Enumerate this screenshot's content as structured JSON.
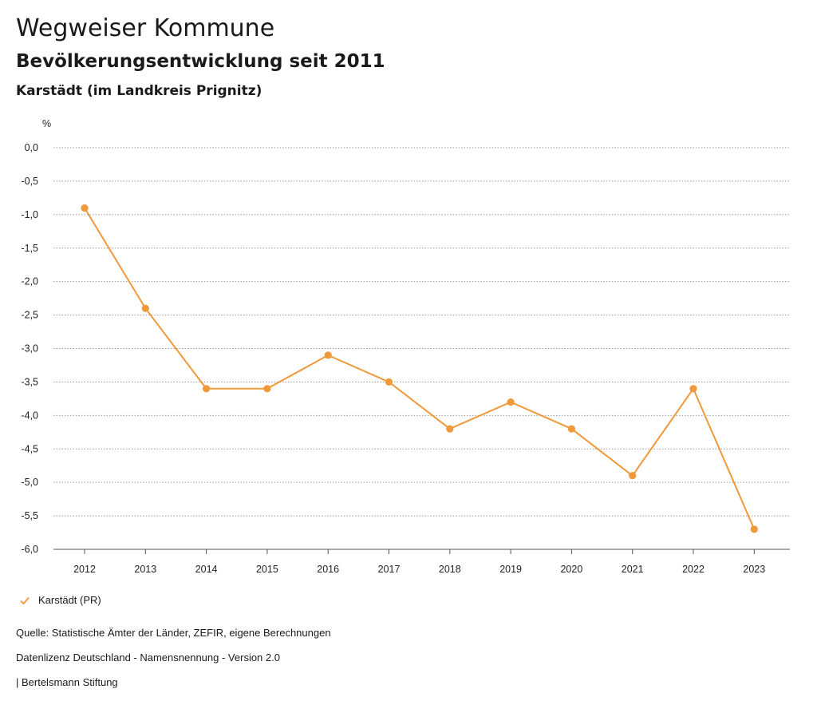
{
  "header": {
    "title": "Wegweiser Kommune",
    "subtitle": "Bevölkerungsentwicklung seit 2011",
    "region": "Karstädt (im Landkreis Prignitz)"
  },
  "colors": {
    "series": "#f0993a",
    "grid": "#9a9a9a"
  },
  "chart_data": {
    "type": "line",
    "ylabel": "%",
    "xlabel": "",
    "ylim": [
      -6.0,
      0.0
    ],
    "yticks": [
      "0,0",
      "-0,5",
      "-1,0",
      "-1,5",
      "-2,0",
      "-2,5",
      "-3,0",
      "-3,5",
      "-4,0",
      "-4,5",
      "-5,0",
      "-5,5",
      "-6,0"
    ],
    "x": [
      "2012",
      "2013",
      "2014",
      "2015",
      "2016",
      "2017",
      "2018",
      "2019",
      "2020",
      "2021",
      "2022",
      "2023"
    ],
    "grid": true,
    "legend_position": "bottom-left",
    "series": [
      {
        "name": "Karstädt (PR)",
        "values": [
          -0.9,
          -2.4,
          -3.6,
          -3.6,
          -3.1,
          -3.5,
          -4.2,
          -3.8,
          -4.2,
          -4.9,
          -3.6,
          -5.7
        ]
      }
    ]
  },
  "footer": {
    "source": "Quelle: Statistische Ämter der Länder, ZEFIR, eigene Berechnungen",
    "license": "Datenlizenz Deutschland - Namensnennung - Version 2.0",
    "publisher": "| Bertelsmann Stiftung"
  }
}
